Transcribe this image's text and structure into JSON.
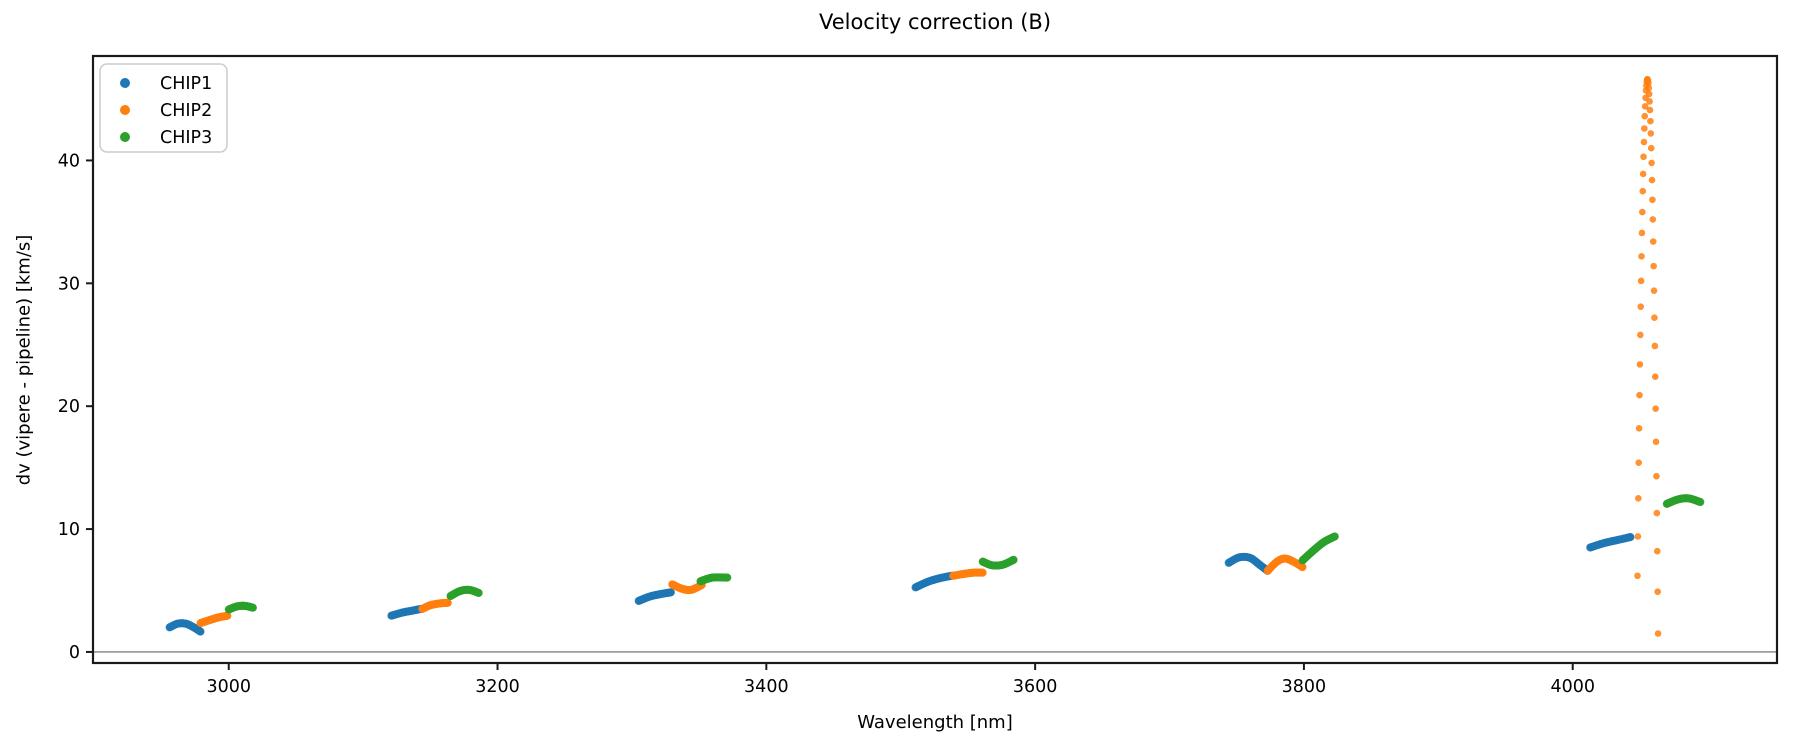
{
  "chart_data": {
    "type": "scatter",
    "title": "Velocity correction (B)",
    "xlabel": "Wavelength [nm]",
    "ylabel": "dv (vipere - pipeline) [km/s]",
    "xlim": [
      2899,
      4152
    ],
    "ylim": [
      -0.9,
      48.5
    ],
    "xticks": [
      3000,
      3200,
      3400,
      3600,
      3800,
      4000
    ],
    "yticks": [
      0,
      10,
      20,
      30,
      40
    ],
    "grid": false,
    "zero_line": {
      "y": 0,
      "color": "#808080"
    },
    "axis_color": "#1a1a1a",
    "legend": {
      "position": "upper left",
      "entries": [
        {
          "label": "CHIP1",
          "color": "#1f77b4"
        },
        {
          "label": "CHIP2",
          "color": "#ff7f0e"
        },
        {
          "label": "CHIP3",
          "color": "#2ca02c"
        }
      ]
    },
    "series": [
      {
        "name": "CHIP1",
        "color": "#1f77b4",
        "segments": [
          {
            "samples": 42,
            "anchors": [
              [
                2956,
                2.0
              ],
              [
                2962,
                2.3
              ],
              [
                2968,
                2.3
              ],
              [
                2974,
                2.0
              ],
              [
                2979,
                1.65
              ]
            ]
          },
          {
            "samples": 42,
            "anchors": [
              [
                3121,
                2.95
              ],
              [
                3129,
                3.2
              ],
              [
                3136,
                3.35
              ],
              [
                3143,
                3.5
              ]
            ]
          },
          {
            "samples": 42,
            "anchors": [
              [
                3305,
                4.15
              ],
              [
                3313,
                4.5
              ],
              [
                3321,
                4.7
              ],
              [
                3329,
                4.85
              ]
            ]
          },
          {
            "samples": 42,
            "anchors": [
              [
                3511,
                5.25
              ],
              [
                3520,
                5.7
              ],
              [
                3529,
                6.0
              ],
              [
                3538,
                6.2
              ]
            ]
          },
          {
            "samples": 42,
            "anchors": [
              [
                3744,
                7.25
              ],
              [
                3752,
                7.7
              ],
              [
                3760,
                7.65
              ],
              [
                3767,
                7.1
              ],
              [
                3773,
                6.6
              ]
            ]
          },
          {
            "samples": 42,
            "anchors": [
              [
                4013,
                8.5
              ],
              [
                4023,
                8.85
              ],
              [
                4033,
                9.1
              ],
              [
                4043,
                9.35
              ]
            ]
          }
        ]
      },
      {
        "name": "CHIP2",
        "color": "#ff7f0e",
        "segments": [
          {
            "samples": 42,
            "anchors": [
              [
                2979,
                2.35
              ],
              [
                2986,
                2.6
              ],
              [
                2992,
                2.8
              ],
              [
                2999,
                2.95
              ]
            ]
          },
          {
            "samples": 42,
            "anchors": [
              [
                3144,
                3.5
              ],
              [
                3150,
                3.8
              ],
              [
                3157,
                3.95
              ],
              [
                3163,
                4.0
              ]
            ]
          },
          {
            "samples": 42,
            "anchors": [
              [
                3330,
                5.5
              ],
              [
                3337,
                5.15
              ],
              [
                3344,
                5.05
              ],
              [
                3352,
                5.45
              ]
            ]
          },
          {
            "samples": 42,
            "anchors": [
              [
                3539,
                6.2
              ],
              [
                3547,
                6.35
              ],
              [
                3554,
                6.45
              ],
              [
                3561,
                6.45
              ]
            ]
          },
          {
            "samples": 42,
            "anchors": [
              [
                3773,
                6.6
              ],
              [
                3780,
                7.35
              ],
              [
                3786,
                7.6
              ],
              [
                3793,
                7.3
              ],
              [
                3799,
                6.9
              ]
            ]
          },
          {
            "samples": null,
            "anchors": [
              [
                4048.2,
                6.2
              ],
              [
                4048.5,
                9.4
              ],
              [
                4048.8,
                12.5
              ],
              [
                4049.1,
                15.4
              ],
              [
                4049.4,
                18.2
              ],
              [
                4049.7,
                20.9
              ],
              [
                4050.0,
                23.4
              ],
              [
                4050.3,
                25.8
              ],
              [
                4050.6,
                28.1
              ],
              [
                4050.9,
                30.2
              ],
              [
                4051.2,
                32.2
              ],
              [
                4051.5,
                34.1
              ],
              [
                4051.8,
                35.8
              ],
              [
                4052.1,
                37.5
              ],
              [
                4052.4,
                38.9
              ],
              [
                4052.7,
                40.3
              ],
              [
                4053.0,
                41.5
              ],
              [
                4053.3,
                42.6
              ],
              [
                4053.6,
                43.6
              ],
              [
                4053.9,
                44.4
              ],
              [
                4054.2,
                45.1
              ],
              [
                4054.5,
                45.7
              ],
              [
                4054.8,
                46.1
              ],
              [
                4055.1,
                46.4
              ],
              [
                4055.4,
                46.6
              ],
              [
                4055.7,
                46.6
              ],
              [
                4056.0,
                46.5
              ],
              [
                4056.3,
                46.3
              ],
              [
                4056.6,
                45.9
              ],
              [
                4056.9,
                45.4
              ],
              [
                4057.2,
                44.8
              ],
              [
                4057.5,
                44.1
              ],
              [
                4057.8,
                43.2
              ],
              [
                4058.1,
                42.2
              ],
              [
                4058.4,
                41.0
              ],
              [
                4058.7,
                39.8
              ],
              [
                4059.0,
                38.4
              ],
              [
                4059.3,
                36.8
              ],
              [
                4059.6,
                35.2
              ],
              [
                4059.9,
                33.4
              ],
              [
                4060.2,
                31.4
              ],
              [
                4060.5,
                29.4
              ],
              [
                4060.8,
                27.2
              ],
              [
                4061.1,
                24.9
              ],
              [
                4061.4,
                22.4
              ],
              [
                4061.7,
                19.8
              ],
              [
                4062.0,
                17.1
              ],
              [
                4062.3,
                14.3
              ],
              [
                4062.6,
                11.3
              ],
              [
                4062.9,
                8.2
              ],
              [
                4063.2,
                4.9
              ],
              [
                4063.5,
                1.5
              ]
            ]
          }
        ]
      },
      {
        "name": "CHIP3",
        "color": "#2ca02c",
        "segments": [
          {
            "samples": 42,
            "anchors": [
              [
                3000,
                3.45
              ],
              [
                3006,
                3.7
              ],
              [
                3012,
                3.75
              ],
              [
                3018,
                3.6
              ]
            ]
          },
          {
            "samples": 42,
            "anchors": [
              [
                3165,
                4.55
              ],
              [
                3172,
                4.95
              ],
              [
                3179,
                5.05
              ],
              [
                3186,
                4.8
              ]
            ]
          },
          {
            "samples": 42,
            "anchors": [
              [
                3351,
                5.75
              ],
              [
                3360,
                6.05
              ],
              [
                3371,
                6.05
              ]
            ]
          },
          {
            "samples": 42,
            "anchors": [
              [
                3561,
                7.35
              ],
              [
                3568,
                7.05
              ],
              [
                3576,
                7.1
              ],
              [
                3584,
                7.5
              ]
            ]
          },
          {
            "samples": 42,
            "anchors": [
              [
                3799,
                7.45
              ],
              [
                3807,
                8.25
              ],
              [
                3815,
                8.95
              ],
              [
                3823,
                9.4
              ]
            ]
          },
          {
            "samples": 42,
            "anchors": [
              [
                4070,
                12.05
              ],
              [
                4078,
                12.4
              ],
              [
                4086,
                12.5
              ],
              [
                4095,
                12.2
              ]
            ]
          }
        ]
      }
    ]
  }
}
